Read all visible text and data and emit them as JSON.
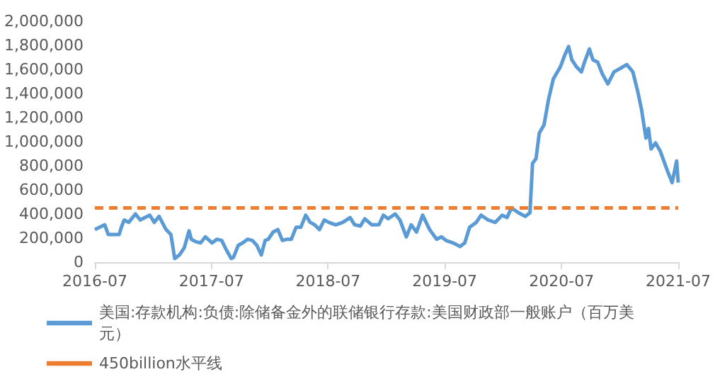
{
  "chart_data": {
    "type": "line",
    "xlim": [
      "2016-07",
      "2021-07"
    ],
    "xticks": [
      "2016-07",
      "2017-07",
      "2018-07",
      "2019-07",
      "2020-07",
      "2021-07"
    ],
    "ylim": [
      0,
      2000000
    ],
    "yticks": [
      0,
      {
        "value": 200000,
        "label": "200,000"
      },
      {
        "value": 400000,
        "label": "400,000"
      },
      {
        "value": 600000,
        "label": "600,000"
      },
      {
        "value": 800000,
        "label": "800,000"
      },
      {
        "value": 1000000,
        "label": "1,000,000"
      },
      {
        "value": 1200000,
        "label": "1,200,000"
      },
      {
        "value": 1400000,
        "label": "1,400,000"
      },
      {
        "value": 1600000,
        "label": "1,600,000"
      },
      {
        "value": 1800000,
        "label": "1,800,000"
      },
      {
        "value": 2000000,
        "label": "2,000,000"
      }
    ],
    "grid": false,
    "legend": "bottom",
    "marker": "none",
    "series": [
      {
        "name": "美国:存款机构:负债:除储备金外的联储银行存款:美国财政部一般账户（百万美元）",
        "color": "#5b9bd5",
        "line_style": "solid",
        "x": [
          "2016-07-01",
          "2016-08-01",
          "2016-08-12",
          "2016-09-15",
          "2016-09-22",
          "2016-10-01",
          "2016-10-15",
          "2016-11-05",
          "2016-11-20",
          "2016-12-05",
          "2016-12-20",
          "2017-01-03",
          "2017-01-18",
          "2017-02-09",
          "2017-02-24",
          "2017-03-08",
          "2017-03-23",
          "2017-04-07",
          "2017-04-22",
          "2017-04-29",
          "2017-05-13",
          "2017-05-28",
          "2017-06-12",
          "2017-07-03",
          "2017-07-18",
          "2017-08-02",
          "2017-08-17",
          "2017-09-01",
          "2017-09-08",
          "2017-09-23",
          "2017-10-07",
          "2017-10-22",
          "2017-11-06",
          "2017-11-20",
          "2017-12-04",
          "2017-12-16",
          "2017-12-26",
          "2018-01-10",
          "2018-01-25",
          "2018-02-08",
          "2018-02-23",
          "2018-03-08",
          "2018-03-23",
          "2018-04-07",
          "2018-04-22",
          "2018-05-06",
          "2018-05-20",
          "2018-06-04",
          "2018-06-19",
          "2018-07-03",
          "2018-07-25",
          "2018-08-16",
          "2018-09-08",
          "2018-09-22",
          "2018-10-10",
          "2018-10-24",
          "2018-11-15",
          "2018-12-07",
          "2018-12-21",
          "2019-01-05",
          "2019-01-27",
          "2019-02-11",
          "2019-03-03",
          "2019-03-18",
          "2019-04-04",
          "2019-04-23",
          "2019-05-15",
          "2019-06-06",
          "2019-06-21",
          "2019-07-05",
          "2019-07-27",
          "2019-08-18",
          "2019-09-02",
          "2019-09-17",
          "2019-10-08",
          "2019-10-23",
          "2019-11-14",
          "2019-12-06",
          "2019-12-28",
          "2020-01-12",
          "2020-01-26",
          "2020-02-17",
          "2020-03-09",
          "2020-03-24",
          "2020-04-01",
          "2020-04-12",
          "2020-04-22",
          "2020-05-07",
          "2020-05-21",
          "2020-06-05",
          "2020-06-27",
          "2020-07-11",
          "2020-07-23",
          "2020-08-02",
          "2020-08-17",
          "2020-09-01",
          "2020-09-08",
          "2020-09-26",
          "2020-10-07",
          "2020-10-22",
          "2020-11-06",
          "2020-11-23",
          "2020-12-12",
          "2020-12-26",
          "2021-01-21",
          "2021-02-09",
          "2021-02-24",
          "2021-03-08",
          "2021-03-22",
          "2021-03-30",
          "2021-04-07",
          "2021-04-21",
          "2021-05-06",
          "2021-05-28",
          "2021-06-12",
          "2021-06-26",
          "2021-07-01"
        ],
        "values": [
          270000,
          310000,
          230000,
          230000,
          290000,
          350000,
          330000,
          400000,
          350000,
          370000,
          390000,
          330000,
          380000,
          270000,
          230000,
          30000,
          60000,
          120000,
          260000,
          190000,
          170000,
          160000,
          210000,
          160000,
          190000,
          180000,
          100000,
          30000,
          40000,
          140000,
          160000,
          190000,
          180000,
          140000,
          60000,
          180000,
          190000,
          250000,
          270000,
          180000,
          190000,
          190000,
          290000,
          290000,
          390000,
          330000,
          310000,
          270000,
          350000,
          330000,
          310000,
          330000,
          370000,
          310000,
          300000,
          360000,
          310000,
          310000,
          390000,
          360000,
          400000,
          350000,
          210000,
          310000,
          250000,
          390000,
          270000,
          190000,
          210000,
          180000,
          160000,
          130000,
          160000,
          290000,
          330000,
          390000,
          350000,
          330000,
          390000,
          370000,
          450000,
          410000,
          380000,
          410000,
          820000,
          860000,
          1070000,
          1140000,
          1350000,
          1520000,
          1620000,
          1720000,
          1790000,
          1680000,
          1620000,
          1580000,
          1640000,
          1770000,
          1680000,
          1660000,
          1560000,
          1480000,
          1580000,
          1600000,
          1640000,
          1580000,
          1420000,
          1270000,
          1030000,
          1110000,
          940000,
          990000,
          920000,
          760000,
          660000,
          840000,
          660000
        ]
      },
      {
        "name": "450billion水平线",
        "color": "#ed7d31",
        "line_style": "dashed",
        "x": [
          "2016-07-01",
          "2021-07-01"
        ],
        "values": [
          450000,
          450000
        ]
      }
    ]
  }
}
